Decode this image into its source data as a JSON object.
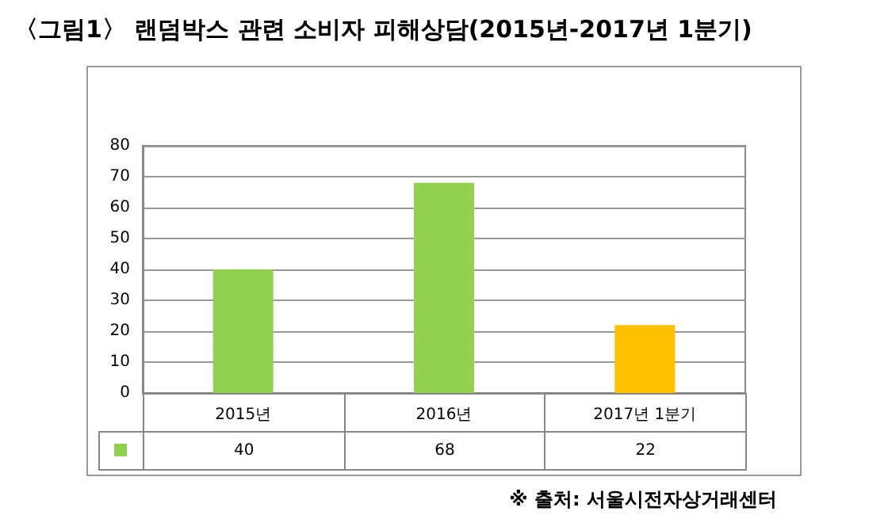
{
  "chart_data": {
    "type": "bar",
    "title": "〈그림1〉 랜덤박스 관련 소비자 피해상담(2015년-2017년 1분기)",
    "categories": [
      "2015년",
      "2016년",
      "2017년 1분기"
    ],
    "values": [
      40,
      68,
      22
    ],
    "colors": [
      "#92d050",
      "#92d050",
      "#ffc000"
    ],
    "ylim": [
      0,
      80
    ],
    "yticks": [
      0,
      10,
      20,
      30,
      40,
      50,
      60,
      70,
      80
    ],
    "grid": "y",
    "data_labels": true,
    "annotations": [
      "※ 출처: 서울시전자상거래센터"
    ]
  }
}
